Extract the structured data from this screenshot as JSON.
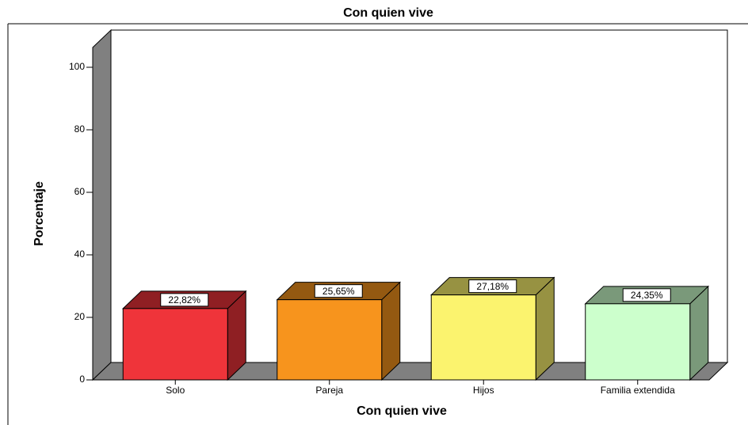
{
  "chart_data": {
    "type": "bar3d",
    "title": "Con quien vive",
    "x_label": "Con quien vive",
    "y_label": "Porcentaje",
    "categories": [
      "Solo",
      "Pareja",
      "Hijos",
      "Familia extendida"
    ],
    "values": [
      22.82,
      25.65,
      27.18,
      24.35
    ],
    "value_labels": [
      "22,82%",
      "25,65%",
      "27,18%",
      "24,35%"
    ],
    "colors": [
      "#ef343a",
      "#f7941d",
      "#fbf36e",
      "#ccffcc"
    ],
    "ylim": [
      0,
      100
    ],
    "yticks": [
      0,
      20,
      40,
      60,
      80,
      100
    ]
  }
}
